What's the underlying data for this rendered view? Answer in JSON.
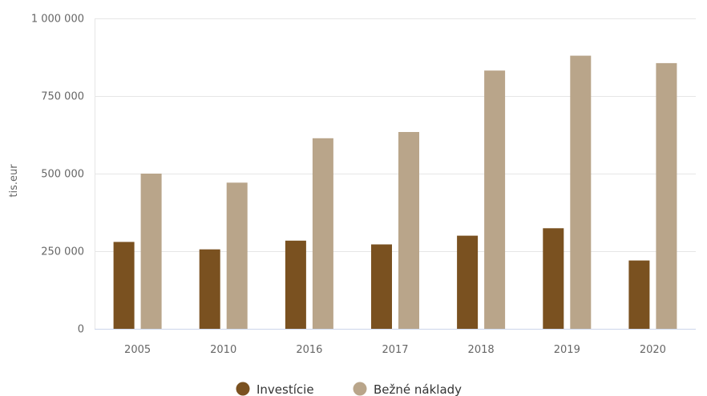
{
  "chart_data": {
    "type": "bar",
    "title": "",
    "xlabel": "",
    "ylabel": "tis.eur",
    "categories": [
      "2005",
      "2010",
      "2016",
      "2017",
      "2018",
      "2019",
      "2020"
    ],
    "series": [
      {
        "name": "Investície",
        "color": "#7a5120",
        "values": [
          280000,
          256000,
          284000,
          272000,
          300000,
          324000,
          220000
        ]
      },
      {
        "name": "Bežné náklady",
        "color": "#b9a58a",
        "values": [
          500000,
          471000,
          614000,
          634000,
          832000,
          880000,
          856000
        ]
      }
    ],
    "ylim": [
      0,
      1000000
    ],
    "yticks": [
      0,
      250000,
      500000,
      750000,
      1000000
    ],
    "ytick_labels": [
      "0",
      "250 000",
      "500 000",
      "750 000",
      "1 000 000"
    ],
    "grid": true,
    "legend_position": "bottom-center"
  }
}
